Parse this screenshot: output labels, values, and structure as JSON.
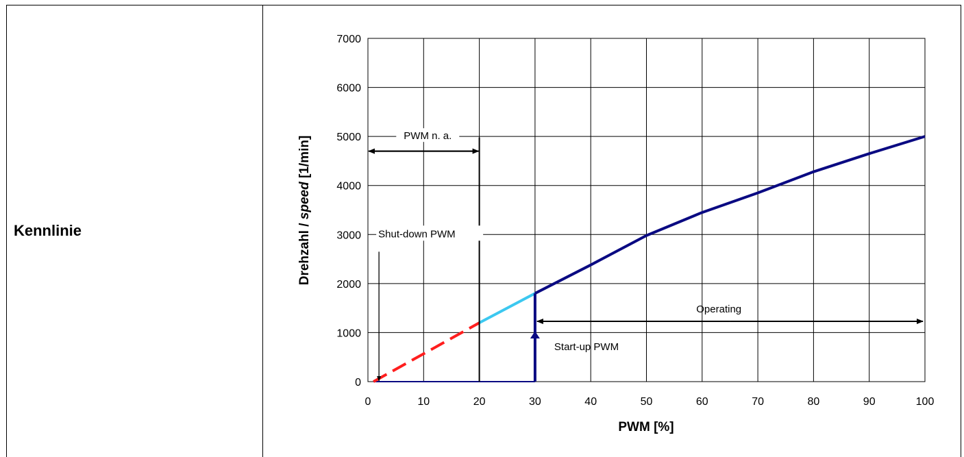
{
  "table": {
    "row_label": "Kennlinie"
  },
  "chart_data": {
    "type": "line",
    "xlabel": "PWM [%]",
    "ylabel_parts": [
      "Drehzahl / ",
      "speed",
      " [1/min]"
    ],
    "xlim": [
      0,
      100
    ],
    "ylim": [
      0,
      7000
    ],
    "xticks": [
      0,
      10,
      20,
      30,
      40,
      50,
      60,
      70,
      80,
      90,
      100
    ],
    "yticks": [
      0,
      1000,
      2000,
      3000,
      4000,
      5000,
      6000,
      7000
    ],
    "grid": true,
    "series": [
      {
        "style": "dashed",
        "color": "#ff1e1e",
        "x": [
          1,
          20
        ],
        "y": [
          0,
          1200
        ]
      },
      {
        "style": "solid",
        "color": "#3cc8f0",
        "x": [
          20,
          30
        ],
        "y": [
          1200,
          1800
        ]
      },
      {
        "style": "solid",
        "color": "#0a0a82",
        "x": [
          30,
          40,
          50,
          60,
          70,
          80,
          90,
          100
        ],
        "y": [
          1800,
          2380,
          2980,
          3450,
          3850,
          4280,
          4650,
          5000
        ]
      }
    ],
    "annotations": {
      "pwm_na": {
        "label": "PWM n. a.",
        "x_from": 0,
        "x_to": 20,
        "y": 4700
      },
      "shut_down": {
        "label": "Shut-down PWM",
        "x": 1,
        "y_top": 2650
      },
      "start_up": {
        "label": "Start-up PWM",
        "x": 30,
        "y_from": 0,
        "y_to": 1800
      },
      "operating": {
        "label": "Operating",
        "x_from": 30,
        "x_to": 100,
        "y": 1230
      }
    }
  }
}
